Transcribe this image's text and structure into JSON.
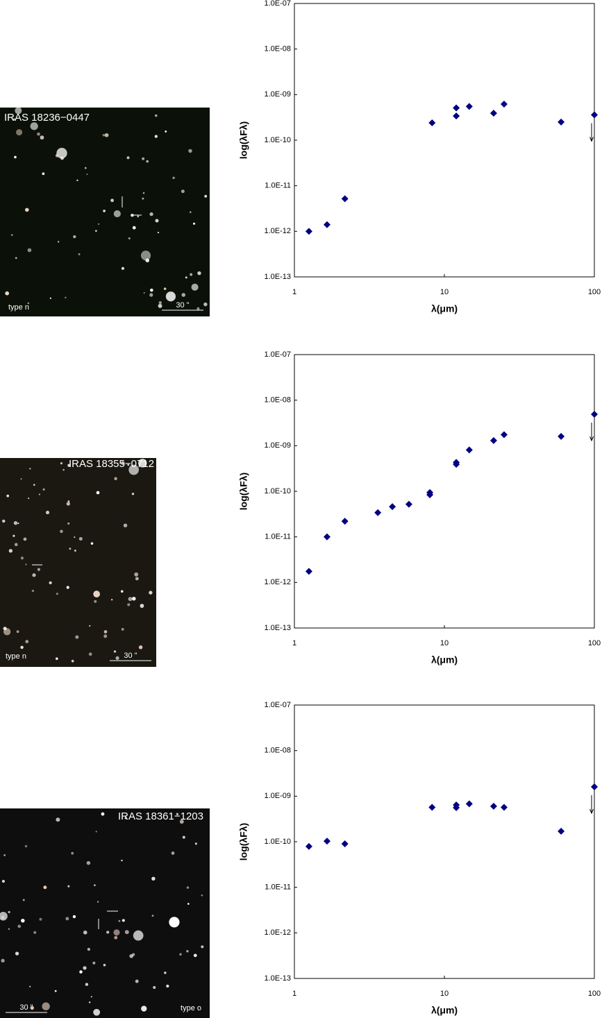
{
  "chart_data": [
    {
      "type": "scatter",
      "xlabel": "λ(μm)",
      "ylabel": "log(λFλ)",
      "xlog": true,
      "ylog": true,
      "color": "#000080",
      "x": [
        1.25,
        1.65,
        2.17,
        8.28,
        12,
        12,
        14.65,
        21.3,
        25,
        60,
        100
      ],
      "values": [
        1e-12,
        1.4e-12,
        5.2e-12,
        2.4e-10,
        5.1e-10,
        3.4e-10,
        5.5e-10,
        3.9e-10,
        6.2e-10,
        2.5e-10,
        3.6e-10
      ],
      "upper_limits": [
        false,
        false,
        false,
        false,
        false,
        false,
        false,
        false,
        false,
        false,
        true
      ],
      "xlim": [
        1,
        100
      ],
      "xticks": [
        1,
        10,
        100
      ],
      "ylim": [
        1e-13,
        1e-07
      ],
      "yticks": [
        {
          "value": 1e-13,
          "label": "1.0E-13"
        },
        {
          "value": 1e-12,
          "label": "1.0E-12"
        },
        {
          "value": 1e-11,
          "label": "1.0E-11"
        },
        {
          "value": 1e-10,
          "label": "1.0E-10"
        },
        {
          "value": 1e-09,
          "label": "1.0E-09"
        },
        {
          "value": 1e-08,
          "label": "1.0E-08"
        },
        {
          "value": 1e-07,
          "label": "1.0E-07"
        }
      ]
    },
    {
      "type": "scatter",
      "xlabel": "λ(μm)",
      "ylabel": "log(λFλ)",
      "xlog": true,
      "ylog": true,
      "color": "#000080",
      "x": [
        1.25,
        1.65,
        2.17,
        3.6,
        4.5,
        5.8,
        8.0,
        8.0,
        12,
        12,
        14.65,
        21.3,
        25,
        60,
        100
      ],
      "values": [
        1.75e-12,
        1e-11,
        2.2e-11,
        3.4e-11,
        4.6e-11,
        5.2e-11,
        8.4e-11,
        9.4e-11,
        4.3e-10,
        3.9e-10,
        8.1e-10,
        1.3e-09,
        1.75e-09,
        1.6e-09,
        4.9e-09
      ],
      "upper_limits": [
        false,
        false,
        false,
        false,
        false,
        false,
        false,
        false,
        false,
        false,
        false,
        false,
        false,
        false,
        true
      ],
      "xlim": [
        1,
        100
      ],
      "xticks": [
        1,
        10,
        100
      ],
      "ylim": [
        1e-13,
        1e-07
      ],
      "yticks": [
        {
          "value": 1e-13,
          "label": "1.0E-13"
        },
        {
          "value": 1e-12,
          "label": "1.0E-12"
        },
        {
          "value": 1e-11,
          "label": "1.0E-11"
        },
        {
          "value": 1e-10,
          "label": "1.0E-10"
        },
        {
          "value": 1e-09,
          "label": "1.0E-09"
        },
        {
          "value": 1e-08,
          "label": "1.0E-08"
        },
        {
          "value": 1e-07,
          "label": "1.0E-07"
        }
      ]
    },
    {
      "type": "scatter",
      "xlabel": "λ(μm)",
      "ylabel": "log(λFλ)",
      "xlog": true,
      "ylog": true,
      "color": "#000080",
      "x": [
        1.25,
        1.65,
        2.17,
        8.28,
        12,
        12,
        14.65,
        21.3,
        25,
        60,
        100
      ],
      "values": [
        7.9e-11,
        1.03e-10,
        9e-11,
        5.7e-10,
        6.4e-10,
        5.6e-10,
        6.8e-10,
        6e-10,
        5.7e-10,
        1.7e-10,
        1.6e-09
      ],
      "upper_limits": [
        false,
        false,
        false,
        false,
        false,
        false,
        false,
        false,
        false,
        false,
        true
      ],
      "xlim": [
        1,
        100
      ],
      "xticks": [
        1,
        10,
        100
      ],
      "ylim": [
        1e-13,
        1e-07
      ],
      "yticks": [
        {
          "value": 1e-13,
          "label": "1.0E-13"
        },
        {
          "value": 1e-12,
          "label": "1.0E-12"
        },
        {
          "value": 1e-11,
          "label": "1.0E-11"
        },
        {
          "value": 1e-10,
          "label": "1.0E-10"
        },
        {
          "value": 1e-09,
          "label": "1.0E-09"
        },
        {
          "value": 1e-08,
          "label": "1.0E-08"
        },
        {
          "value": 1e-07,
          "label": "1.0E-07"
        }
      ]
    }
  ],
  "images": [
    {
      "title": "IRAS 18236−0447",
      "type_label": "type n",
      "scale_label": "30 \""
    },
    {
      "title": "IRAS 18355−0712",
      "type_label": "type n",
      "scale_label": "30 \""
    },
    {
      "title": "IRAS 18361−1203",
      "type_label": "type o",
      "scale_label": "30 \""
    }
  ]
}
